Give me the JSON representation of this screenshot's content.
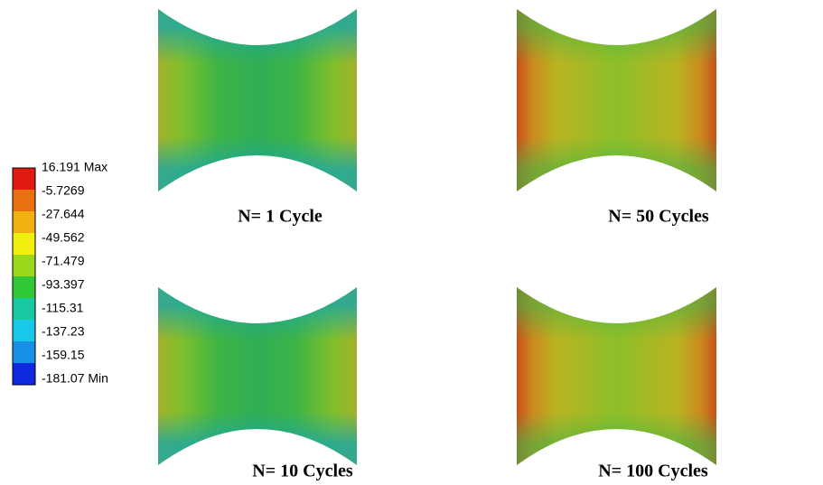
{
  "legend": {
    "labels": [
      "16.191 Max",
      "-5.7269",
      "-27.644",
      "-49.562",
      "-71.479",
      "-93.397",
      "-115.31",
      "-137.23",
      "-159.15",
      "-181.07 Min"
    ]
  },
  "panels": [
    {
      "caption": "N= 1 Cycle"
    },
    {
      "caption": "N= 50 Cycles"
    },
    {
      "caption": "N= 10 Cycles"
    },
    {
      "caption": "N= 100 Cycles"
    }
  ]
}
